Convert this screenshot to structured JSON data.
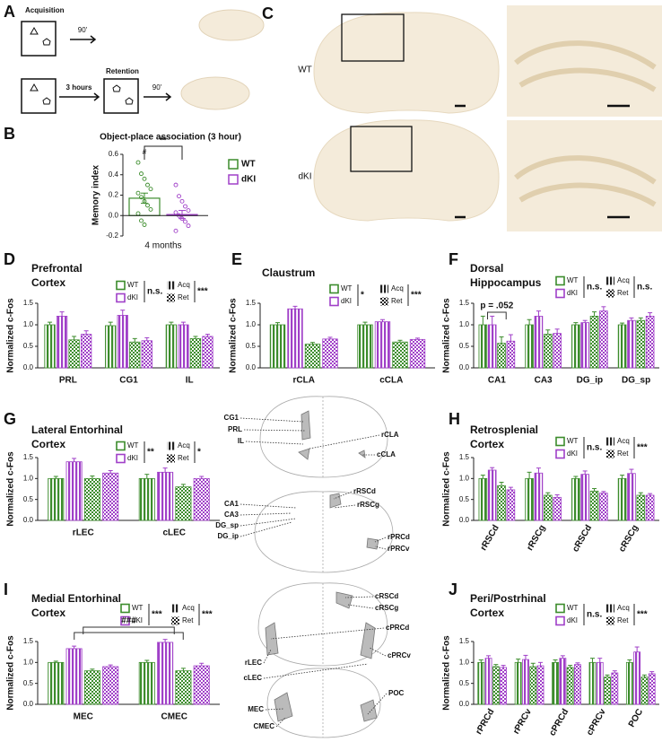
{
  "panel_letters": [
    "A",
    "B",
    "C",
    "D",
    "E",
    "F",
    "G",
    "H",
    "I",
    "J"
  ],
  "schematic": {
    "acquisition": "Acquisition",
    "delay_1": "90'",
    "interval": "3 hours",
    "retention": "Retention",
    "delay_2": "90'"
  },
  "images": {
    "row_labels": [
      "WT",
      "dKI"
    ]
  },
  "atlas": {
    "labels": [
      "CG1",
      "PRL",
      "IL",
      "rCLA",
      "cCLA",
      "CA1",
      "CA3",
      "DG_sp",
      "DG_ip",
      "rRSCd",
      "rRSCg",
      "rPRCd",
      "rPRCv",
      "cRSCd",
      "cRSCg",
      "cPRCd",
      "cPRCv",
      "rLEC",
      "cLEC",
      "MEC",
      "CMEC",
      "POC"
    ]
  },
  "chart_data": [
    {
      "type": "bar",
      "title": "Object-place association (3 hour)",
      "ylabel": "Memory index",
      "categories": [
        "4 months"
      ],
      "series": [
        {
          "name": "WT",
          "color": "#3c8c2c",
          "values": [
            0.17
          ],
          "errors": [
            0.05
          ],
          "points": [
            0.52,
            0.41,
            0.36,
            0.3,
            0.26,
            0.22,
            0.18,
            0.14,
            0.1,
            0.06,
            0.02,
            -0.05,
            -0.09
          ]
        },
        {
          "name": "dKI",
          "color": "#a040c8",
          "values": [
            0.01
          ],
          "errors": [
            0.04
          ],
          "points": [
            0.3,
            0.19,
            0.14,
            0.09,
            0.05,
            0.03,
            0,
            -0.03,
            -0.06,
            -0.1,
            -0.15
          ]
        }
      ],
      "ylim": [
        -0.2,
        0.6
      ],
      "yticks": [
        -0.2,
        {
          "value": 0,
          "label": "0.0"
        },
        0.2,
        0.4,
        0.6
      ],
      "annotations": [
        "#",
        "**"
      ]
    },
    {
      "type": "grouped_bar",
      "title": [
        "Prefrontal",
        "Cortex"
      ],
      "ylabel": "Normalized c-Fos",
      "categories": [
        "PRL",
        "CG1",
        "IL"
      ],
      "series": [
        {
          "name": "WT",
          "session": "Acq",
          "fill": "stripes",
          "color": "#3c8c2c",
          "values": [
            1.0,
            0.98,
            1.0
          ],
          "errors": [
            0.06,
            0.08,
            0.06
          ]
        },
        {
          "name": "dKI",
          "session": "Acq",
          "fill": "stripes",
          "color": "#a040c8",
          "values": [
            1.2,
            1.22,
            1.0
          ],
          "errors": [
            0.1,
            0.12,
            0.06
          ]
        },
        {
          "name": "WT",
          "session": "Ret",
          "fill": "checker",
          "color": "#3c8c2c",
          "values": [
            0.65,
            0.6,
            0.68
          ],
          "errors": [
            0.08,
            0.08,
            0.05
          ]
        },
        {
          "name": "dKI",
          "session": "Ret",
          "fill": "checker",
          "color": "#a040c8",
          "values": [
            0.78,
            0.63,
            0.73
          ],
          "errors": [
            0.08,
            0.07,
            0.05
          ]
        }
      ],
      "genotype_stat": "n.s.",
      "session_stat": "***",
      "ylim": [
        0,
        1.5
      ],
      "yticks": [
        {
          "value": 0,
          "label": "0.0"
        },
        0.5,
        {
          "value": 1,
          "label": "1.0"
        },
        1.5
      ]
    },
    {
      "type": "grouped_bar",
      "title": [
        "Claustrum"
      ],
      "ylabel": "Normalized c-Fos",
      "categories": [
        "rCLA",
        "cCLA"
      ],
      "series": [
        {
          "name": "WT",
          "session": "Acq",
          "fill": "stripes",
          "color": "#3c8c2c",
          "values": [
            1.0,
            1.0
          ],
          "errors": [
            0.05,
            0.06
          ]
        },
        {
          "name": "dKI",
          "session": "Acq",
          "fill": "stripes",
          "color": "#a040c8",
          "values": [
            1.37,
            1.07
          ],
          "errors": [
            0.06,
            0.05
          ]
        },
        {
          "name": "WT",
          "session": "Ret",
          "fill": "checker",
          "color": "#3c8c2c",
          "values": [
            0.55,
            0.6
          ],
          "errors": [
            0.04,
            0.04
          ]
        },
        {
          "name": "dKI",
          "session": "Ret",
          "fill": "checker",
          "color": "#a040c8",
          "values": [
            0.67,
            0.66
          ],
          "errors": [
            0.04,
            0.03
          ]
        }
      ],
      "genotype_stat": "*",
      "session_stat": "***",
      "ylim": [
        0,
        1.5
      ],
      "yticks": [
        {
          "value": 0,
          "label": "0.0"
        },
        0.5,
        {
          "value": 1,
          "label": "1.0"
        },
        1.5
      ]
    },
    {
      "type": "grouped_bar",
      "title": [
        "Dorsal",
        "Hippocampus"
      ],
      "ylabel": "Normalized c-Fos",
      "categories": [
        "CA1",
        "CA3",
        "DG_ip",
        "DG_sp"
      ],
      "series": [
        {
          "name": "WT",
          "session": "Acq",
          "fill": "stripes",
          "color": "#3c8c2c",
          "values": [
            1.0,
            1.0,
            1.0,
            1.0
          ],
          "errors": [
            0.2,
            0.12,
            0.05,
            0.04
          ]
        },
        {
          "name": "dKI",
          "session": "Acq",
          "fill": "stripes",
          "color": "#a040c8",
          "values": [
            1.0,
            1.2,
            1.05,
            1.1
          ],
          "errors": [
            0.2,
            0.12,
            0.05,
            0.06
          ]
        },
        {
          "name": "WT",
          "session": "Ret",
          "fill": "checker",
          "color": "#3c8c2c",
          "values": [
            0.57,
            0.78,
            1.2,
            1.1
          ],
          "errors": [
            0.15,
            0.1,
            0.1,
            0.06
          ]
        },
        {
          "name": "dKI",
          "session": "Ret",
          "fill": "checker",
          "color": "#a040c8",
          "values": [
            0.62,
            0.8,
            1.32,
            1.2
          ],
          "errors": [
            0.15,
            0.1,
            0.1,
            0.08
          ]
        }
      ],
      "genotype_stat": "n.s.",
      "session_stat": "n.s.",
      "annotation": "p = .052",
      "ylim": [
        0,
        1.5
      ],
      "yticks": [
        {
          "value": 0,
          "label": "0.0"
        },
        0.5,
        {
          "value": 1,
          "label": "1.0"
        },
        1.5
      ]
    },
    {
      "type": "grouped_bar",
      "title": [
        "Lateral Entorhinal",
        "Cortex"
      ],
      "ylabel": "Normalized c-Fos",
      "categories": [
        "rLEC",
        "cLEC"
      ],
      "series": [
        {
          "name": "WT",
          "session": "Acq",
          "fill": "stripes",
          "color": "#3c8c2c",
          "values": [
            1.0,
            1.0
          ],
          "errors": [
            0.05,
            0.1
          ]
        },
        {
          "name": "dKI",
          "session": "Acq",
          "fill": "stripes",
          "color": "#a040c8",
          "values": [
            1.4,
            1.15
          ],
          "errors": [
            0.08,
            0.1
          ]
        },
        {
          "name": "WT",
          "session": "Ret",
          "fill": "checker",
          "color": "#3c8c2c",
          "values": [
            1.0,
            0.8
          ],
          "errors": [
            0.06,
            0.06
          ]
        },
        {
          "name": "dKI",
          "session": "Ret",
          "fill": "checker",
          "color": "#a040c8",
          "values": [
            1.13,
            1.0
          ],
          "errors": [
            0.06,
            0.05
          ]
        }
      ],
      "genotype_stat": "**",
      "session_stat": "*",
      "ylim": [
        0,
        1.5
      ],
      "yticks": [
        {
          "value": 0,
          "label": "0.0"
        },
        0.5,
        {
          "value": 1,
          "label": "1.0"
        },
        1.5
      ]
    },
    {
      "type": "grouped_bar",
      "title": [
        "Retrosplenial",
        "Cortex"
      ],
      "ylabel": "Normalized c-Fos",
      "categories": [
        "rRSCd",
        "rRSCg",
        "cRSCd",
        "cRSCg"
      ],
      "series": [
        {
          "name": "WT",
          "session": "Acq",
          "fill": "stripes",
          "color": "#3c8c2c",
          "values": [
            1.0,
            1.0,
            1.0,
            1.0
          ],
          "errors": [
            0.08,
            0.15,
            0.05,
            0.08
          ]
        },
        {
          "name": "dKI",
          "session": "Acq",
          "fill": "stripes",
          "color": "#a040c8",
          "values": [
            1.2,
            1.13,
            1.1,
            1.12
          ],
          "errors": [
            0.06,
            0.12,
            0.08,
            0.1
          ]
        },
        {
          "name": "WT",
          "session": "Ret",
          "fill": "checker",
          "color": "#3c8c2c",
          "values": [
            0.83,
            0.6,
            0.7,
            0.6
          ],
          "errors": [
            0.08,
            0.06,
            0.06,
            0.06
          ]
        },
        {
          "name": "dKI",
          "session": "Ret",
          "fill": "checker",
          "color": "#a040c8",
          "values": [
            0.73,
            0.55,
            0.65,
            0.6
          ],
          "errors": [
            0.06,
            0.06,
            0.04,
            0.04
          ]
        }
      ],
      "genotype_stat": "n.s.",
      "session_stat": "***",
      "ylim": [
        0,
        1.5
      ],
      "yticks": [
        {
          "value": 0,
          "label": "0.0"
        },
        0.5,
        {
          "value": 1,
          "label": "1.0"
        },
        1.5
      ]
    },
    {
      "type": "grouped_bar",
      "title": [
        "Medial Entorhinal",
        "Cortex"
      ],
      "ylabel": "Normalized c-Fos",
      "categories": [
        "MEC",
        "CMEC"
      ],
      "series": [
        {
          "name": "WT",
          "session": "Acq",
          "fill": "stripes",
          "color": "#3c8c2c",
          "values": [
            1.0,
            1.0
          ],
          "errors": [
            0.03,
            0.05
          ]
        },
        {
          "name": "dKI",
          "session": "Acq",
          "fill": "stripes",
          "color": "#a040c8",
          "values": [
            1.33,
            1.48
          ],
          "errors": [
            0.06,
            0.07
          ]
        },
        {
          "name": "WT",
          "session": "Ret",
          "fill": "checker",
          "color": "#3c8c2c",
          "values": [
            0.8,
            0.8
          ],
          "errors": [
            0.04,
            0.06
          ]
        },
        {
          "name": "dKI",
          "session": "Ret",
          "fill": "checker",
          "color": "#a040c8",
          "values": [
            0.9,
            0.92
          ],
          "errors": [
            0.04,
            0.06
          ]
        }
      ],
      "genotype_stat": "***",
      "session_stat": "***",
      "annotation": "###",
      "ylim": [
        0,
        1.5
      ],
      "yticks": [
        {
          "value": 0,
          "label": "0.0"
        },
        0.5,
        {
          "value": 1,
          "label": "1.0"
        },
        1.5
      ]
    },
    {
      "type": "grouped_bar",
      "title": [
        "Peri/Postrhinal",
        "Cortex"
      ],
      "ylabel": "Normalized c-Fos",
      "categories": [
        "rPRCd",
        "rPRCv",
        "cPRCd",
        "cPRCv",
        "POC"
      ],
      "series": [
        {
          "name": "WT",
          "session": "Acq",
          "fill": "stripes",
          "color": "#3c8c2c",
          "values": [
            1.0,
            1.0,
            1.0,
            1.0,
            1.0
          ],
          "errors": [
            0.06,
            0.08,
            0.06,
            0.1,
            0.06
          ]
        },
        {
          "name": "dKI",
          "session": "Acq",
          "fill": "stripes",
          "color": "#a040c8",
          "values": [
            1.1,
            1.07,
            1.1,
            1.0,
            1.25
          ],
          "errors": [
            0.06,
            0.1,
            0.06,
            0.1,
            0.12
          ]
        },
        {
          "name": "WT",
          "session": "Ret",
          "fill": "checker",
          "color": "#3c8c2c",
          "values": [
            0.9,
            0.9,
            0.88,
            0.65,
            0.65
          ],
          "errors": [
            0.05,
            0.08,
            0.05,
            0.05,
            0.05
          ]
        },
        {
          "name": "dKI",
          "session": "Ret",
          "fill": "checker",
          "color": "#a040c8",
          "values": [
            0.88,
            0.92,
            0.95,
            0.75,
            0.73
          ],
          "errors": [
            0.05,
            0.08,
            0.04,
            0.05,
            0.05
          ]
        }
      ],
      "genotype_stat": "n.s.",
      "session_stat": "***",
      "ylim": [
        0,
        1.5
      ],
      "yticks": [
        {
          "value": 0,
          "label": "0.0"
        },
        0.5,
        {
          "value": 1,
          "label": "1.0"
        },
        1.5
      ]
    }
  ]
}
